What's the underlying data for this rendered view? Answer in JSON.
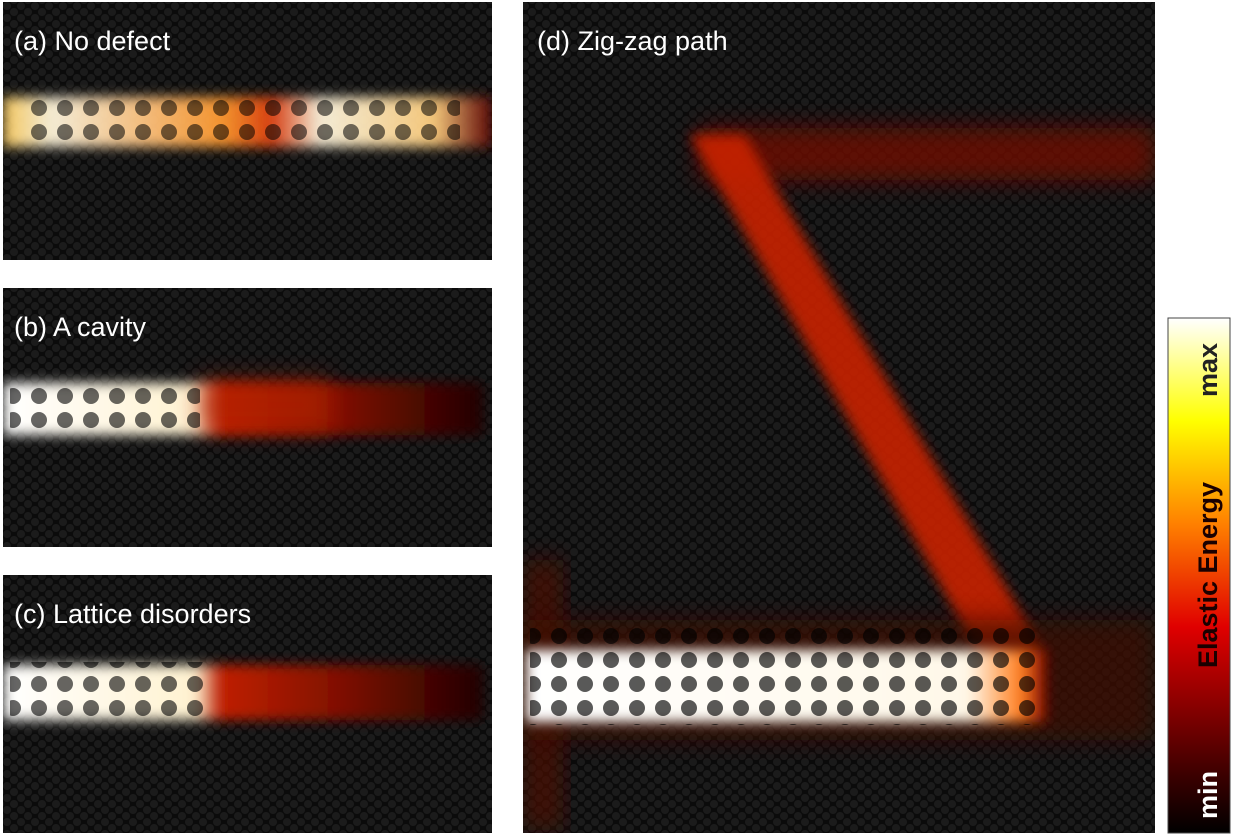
{
  "panels": [
    {
      "label": "(a) No defect"
    },
    {
      "label": "(b) A cavity"
    },
    {
      "label": "(c) Lattice disorders"
    },
    {
      "label": "(d) Zig-zag path"
    }
  ],
  "colorbar": {
    "title": "Elastic Energy",
    "min": "min",
    "max": "max"
  }
}
